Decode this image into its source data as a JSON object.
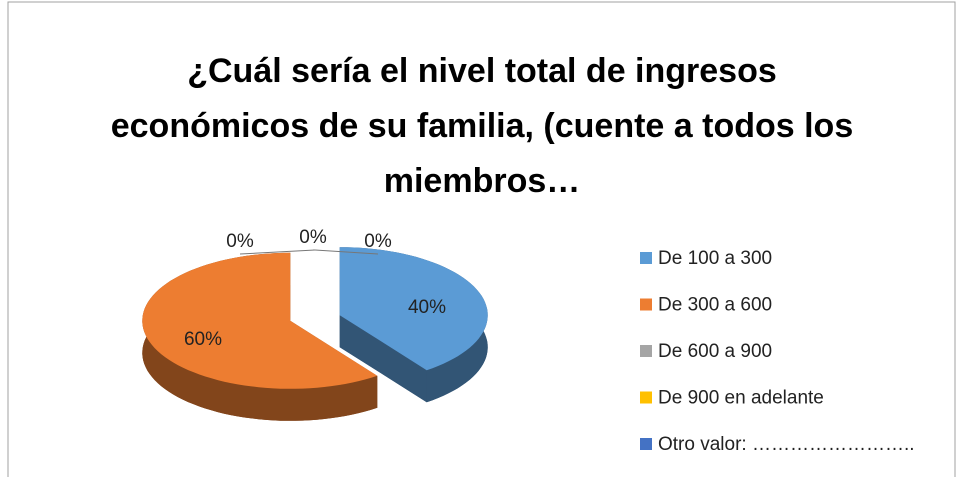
{
  "chart_data": {
    "type": "pie",
    "title": "¿Cuál sería el nivel total de ingresos económicos de su familia, (cuente a todos los miembros…",
    "categories": [
      "De 100 a 300",
      "De 300 a 600",
      "De 600 a 900",
      "De 900 en adelante",
      "Otro valor: …………………….."
    ],
    "values": [
      40,
      60,
      0,
      0,
      0
    ],
    "value_labels": [
      "40%",
      "60%",
      "0%",
      "0%",
      "0%"
    ],
    "colors": [
      "#5b9bd5",
      "#ed7d31",
      "#a5a5a5",
      "#ffc000",
      "#4472c4"
    ],
    "legend": "right"
  }
}
